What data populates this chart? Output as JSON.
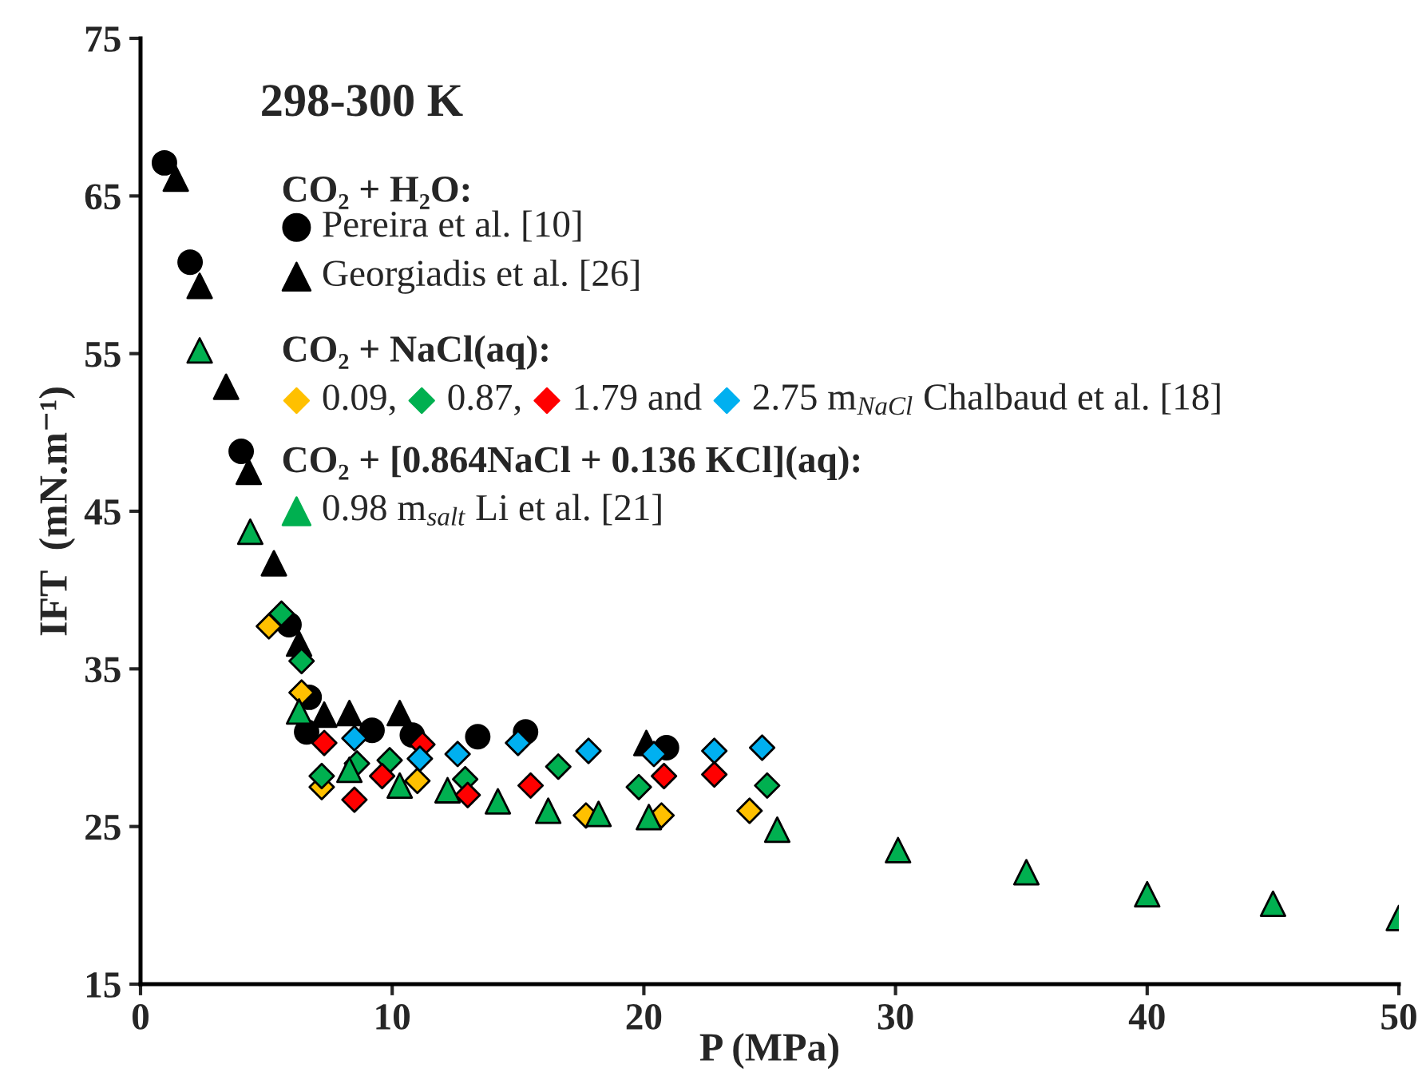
{
  "chart_data": {
    "type": "scatter",
    "xlabel": "P (MPa)",
    "ylabel": "IFT  (mN.m⁻¹)",
    "xlim": [
      0,
      50
    ],
    "xticks": [
      0,
      10,
      20,
      30,
      40,
      50
    ],
    "ylim": [
      15,
      75
    ],
    "yticks": [
      15,
      25,
      35,
      45,
      55,
      65,
      75
    ],
    "grid": false,
    "legend": "top",
    "annotations": [
      "298-300 K",
      "CO₂ + H₂O:",
      "CO₂ + NaCl(aq):",
      "CO₂ + [0.864NaCl + 0.136 KCl](aq):"
    ],
    "series": [
      {
        "name": "Pereira et al. [10]",
        "color": "#000000",
        "marker": "circle",
        "x": [
          0.95,
          1.97,
          4.0,
          5.9,
          6.3,
          6.7,
          6.6,
          9.2,
          10.8,
          13.4,
          15.3,
          20.9
        ],
        "values": [
          67.1,
          60.8,
          48.8,
          37.8,
          null,
          33.2,
          31.0,
          31.1,
          30.8,
          30.7,
          31.0,
          30.0
        ]
      },
      {
        "name": "Georgiadis et al. [26]",
        "color": "#000000",
        "marker": "triangle",
        "x": [
          1.4,
          2.35,
          3.4,
          4.3,
          5.3,
          6.3,
          7.3,
          8.3,
          10.3,
          20.1
        ],
        "values": [
          66.1,
          59.3,
          52.9,
          47.5,
          41.7,
          36.6,
          32.1,
          32.2,
          32.2,
          30.3
        ]
      },
      {
        "name": "0.09,",
        "color": "#ffc000",
        "marker": "diamond",
        "x": [
          5.1,
          6.4,
          7.2,
          8.5,
          11.0,
          12.2,
          17.7,
          20.7,
          24.2
        ],
        "values": [
          37.7,
          33.5,
          27.5,
          null,
          27.9,
          null,
          25.7,
          25.7,
          26.0
        ]
      },
      {
        "name": "0.87,",
        "color": "#00b050",
        "marker": "diamond",
        "x": [
          5.6,
          6.4,
          7.2,
          8.6,
          9.9,
          11.3,
          12.9,
          16.6,
          19.8,
          24.9
        ],
        "values": [
          38.5,
          35.5,
          28.2,
          29.0,
          29.2,
          null,
          28.0,
          28.8,
          27.5,
          27.6
        ]
      },
      {
        "name": "1.79 and",
        "color": "#ff0000",
        "marker": "diamond",
        "x": [
          7.3,
          9.6,
          8.5,
          11.2,
          13.0,
          15.5,
          20.8,
          22.8
        ],
        "values": [
          30.3,
          28.2,
          26.7,
          30.2,
          27.0,
          27.6,
          28.2,
          28.3
        ]
      },
      {
        "name": "2.75 m$_{NaCl}$ Chalbaud et al. [18]",
        "color": "#00b0f0",
        "marker": "diamond",
        "x": [
          8.5,
          11.1,
          12.6,
          15.0,
          17.8,
          20.4,
          22.8,
          24.7
        ],
        "values": [
          30.6,
          29.3,
          29.6,
          30.3,
          29.8,
          29.6,
          29.8,
          30.0
        ]
      },
      {
        "name": "0.98 m$_{salt}$ Li et al. [21]",
        "color": "#00b050",
        "marker": "triangle",
        "x": [
          2.35,
          4.36,
          6.3,
          8.3,
          10.3,
          12.2,
          14.2,
          16.2,
          18.2,
          20.2,
          25.3,
          30.1,
          35.2,
          40.0,
          45.0,
          50.0
        ],
        "values": [
          55.2,
          43.7,
          32.3,
          28.6,
          27.6,
          27.3,
          26.6,
          26.0,
          25.8,
          25.6,
          24.8,
          23.5,
          22.1,
          20.7,
          20.1,
          19.2
        ]
      }
    ]
  }
}
